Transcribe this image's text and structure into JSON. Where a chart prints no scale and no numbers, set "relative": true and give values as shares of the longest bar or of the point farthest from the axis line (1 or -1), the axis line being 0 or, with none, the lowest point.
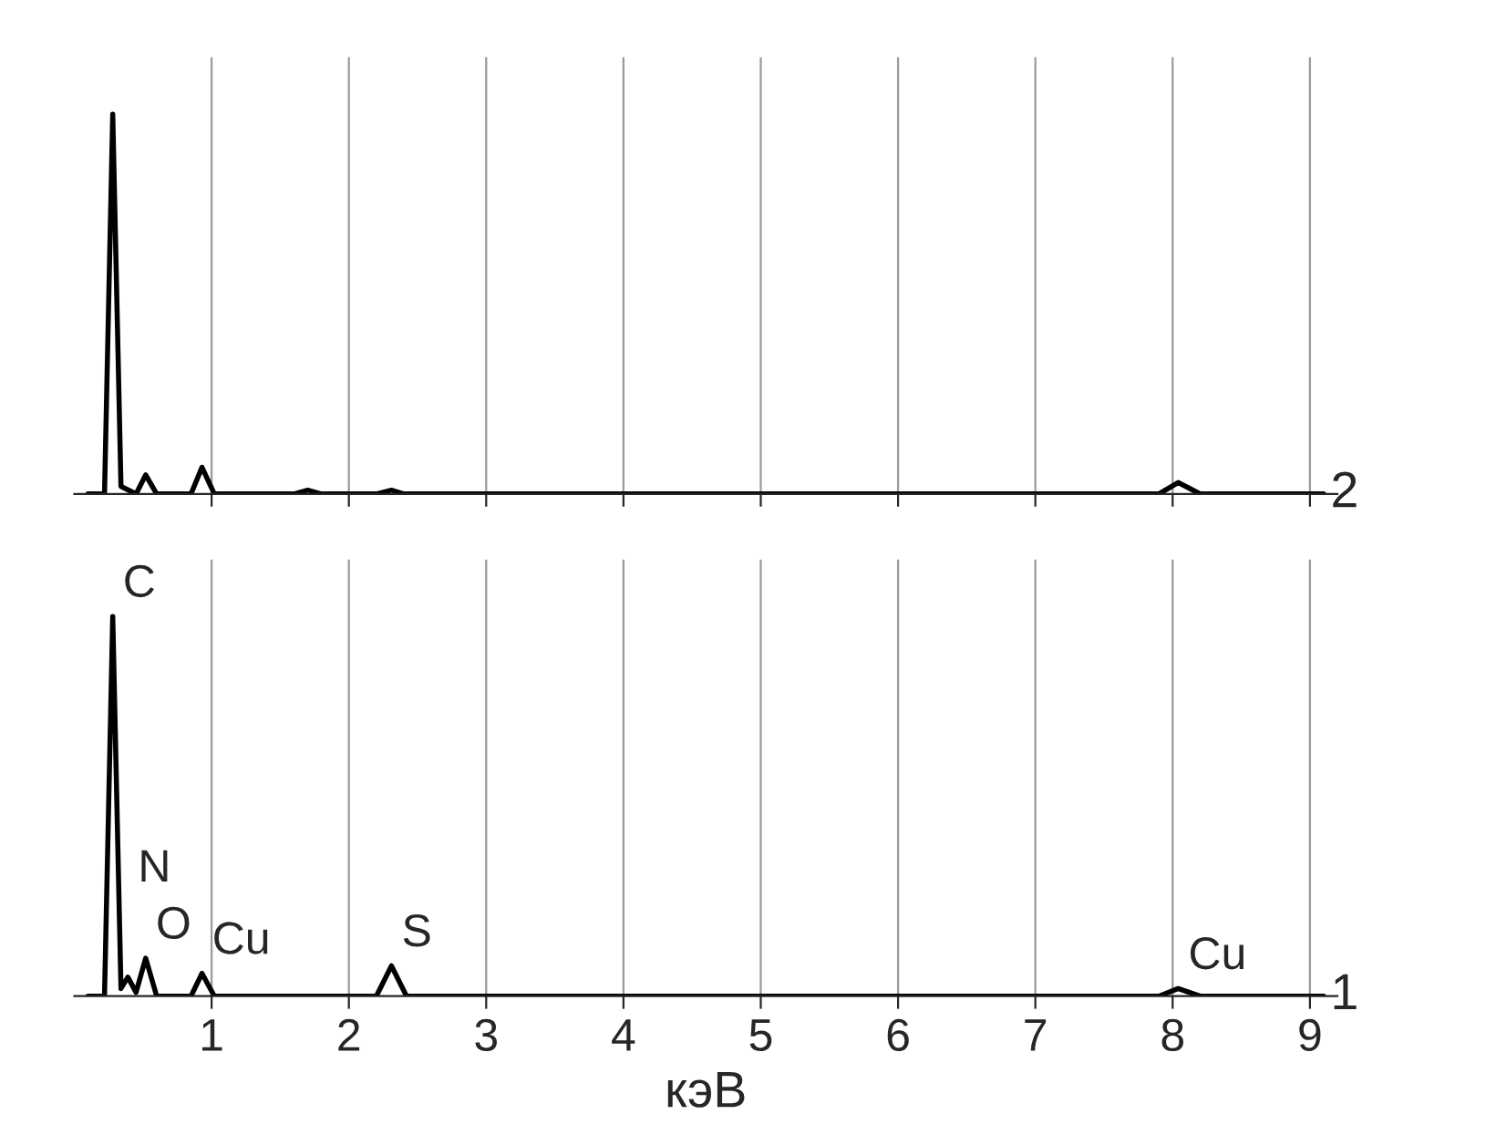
{
  "chart_data": [
    {
      "type": "line",
      "relative": true,
      "xlim": [
        0,
        9.2
      ],
      "xticks": [
        1,
        2,
        3,
        4,
        5,
        6,
        7,
        8,
        9
      ],
      "tick_labels": false,
      "grid": "x",
      "series": [
        {
          "name": "2",
          "color": "#000000",
          "x": [
            0.1,
            0.22,
            0.28,
            0.34,
            0.45,
            0.52,
            0.6,
            0.85,
            0.93,
            1.02,
            1.6,
            1.7,
            1.8,
            2.2,
            2.31,
            2.4,
            7.9,
            8.04,
            8.2,
            9.1
          ],
          "values": [
            0,
            0,
            1.0,
            0.02,
            0,
            0.05,
            0,
            0,
            0.07,
            0,
            0,
            0.01,
            0,
            0,
            0.01,
            0,
            0,
            0.03,
            0,
            0
          ]
        }
      ]
    },
    {
      "type": "line",
      "relative": true,
      "xlim": [
        0,
        9.2
      ],
      "xticks": [
        1,
        2,
        3,
        4,
        5,
        6,
        7,
        8,
        9
      ],
      "xlabel": "кэВ",
      "grid": "x",
      "series": [
        {
          "name": "1",
          "color": "#000000",
          "x": [
            0.1,
            0.22,
            0.28,
            0.34,
            0.39,
            0.45,
            0.52,
            0.6,
            0.85,
            0.93,
            1.02,
            2.2,
            2.31,
            2.42,
            7.9,
            8.04,
            8.2,
            9.1
          ],
          "values": [
            0,
            0,
            1.0,
            0.02,
            0.05,
            0.01,
            0.1,
            0,
            0,
            0.06,
            0,
            0,
            0.08,
            0,
            0,
            0.02,
            0,
            0
          ]
        }
      ],
      "annotations": [
        {
          "text": "C",
          "x": 0.28,
          "y": 1.0
        },
        {
          "text": "N",
          "x": 0.39,
          "y": 0.05
        },
        {
          "text": "O",
          "x": 0.52,
          "y": 0.1
        },
        {
          "text": "Cu",
          "x": 0.93,
          "y": 0.06
        },
        {
          "text": "S",
          "x": 2.31,
          "y": 0.08
        },
        {
          "text": "Cu",
          "x": 8.04,
          "y": 0.02
        }
      ]
    }
  ]
}
